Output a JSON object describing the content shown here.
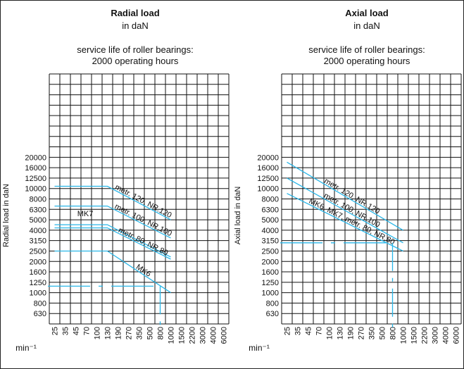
{
  "chart_data": [
    {
      "type": "line",
      "title": "Radial load",
      "subtitle_unit": "in daN",
      "subtitle_life": "service life of roller bearings:",
      "subtitle_hours": "2000 operating hours",
      "ylabel": "Radial load in daN",
      "xlabel_unit": "min⁻¹",
      "y_ticks": [
        "20000",
        "16000",
        "12500",
        "10000",
        "8000",
        "6300",
        "5000",
        "4000",
        "3150",
        "2500",
        "2000",
        "1600",
        "1250",
        "1000",
        "800",
        "630"
      ],
      "x_ticks": [
        "25",
        "35",
        "45",
        "70",
        "100",
        "130",
        "190",
        "270",
        "350",
        "500",
        "800",
        "1000",
        "1500",
        "2200",
        "3000",
        "4000",
        "6000"
      ],
      "series": [
        {
          "name": "metr. 120, NR.120",
          "points": [
            [
              "25",
              "10500"
            ],
            [
              "130",
              "10500"
            ],
            [
              "1000",
              "5000"
            ]
          ]
        },
        {
          "name": "metr. 100, NR.100",
          "points": [
            [
              "25",
              "6800"
            ],
            [
              "130",
              "6800"
            ],
            [
              "1000",
              "3350"
            ]
          ]
        },
        {
          "name": "MK7",
          "points": [
            [
              "25",
              "4500"
            ],
            [
              "130",
              "4500"
            ],
            [
              "1000",
              "2200"
            ]
          ]
        },
        {
          "name": "metr. 80, NR.80",
          "points": [
            [
              "25",
              "4200"
            ],
            [
              "130",
              "4200"
            ],
            [
              "1000",
              "2100"
            ]
          ]
        },
        {
          "name": "MK6",
          "points": [
            [
              "25",
              "2500"
            ],
            [
              "130",
              "2500"
            ],
            [
              "1000",
              "1000"
            ]
          ]
        }
      ],
      "guide": {
        "speed": "800",
        "load": "1150"
      }
    },
    {
      "type": "line",
      "title": "Axial load",
      "subtitle_unit": "in daN",
      "subtitle_life": "service life of roller bearings:",
      "subtitle_hours": "2000 operating hours",
      "ylabel": "Axial load in daN",
      "xlabel_unit": "min⁻¹",
      "y_ticks": [
        "20000",
        "16000",
        "12500",
        "10000",
        "8000",
        "6300",
        "5000",
        "4000",
        "3150",
        "2500",
        "2000",
        "1600",
        "1250",
        "1000",
        "800",
        "630"
      ],
      "x_ticks": [
        "25",
        "35",
        "45",
        "70",
        "100",
        "130",
        "190",
        "270",
        "350",
        "500",
        "800",
        "1000",
        "1500",
        "2200",
        "3000",
        "4000",
        "6000"
      ],
      "series": [
        {
          "name": "metr. 120, NR.120",
          "points": [
            [
              "25",
              "18000"
            ],
            [
              "1000",
              "4000"
            ]
          ]
        },
        {
          "name": "metr. 100, NR.100",
          "points": [
            [
              "25",
              "12500"
            ],
            [
              "1000",
              "3000"
            ]
          ]
        },
        {
          "name": "MK6, MK7, metr. 80, NR.80",
          "points": [
            [
              "25",
              "9000"
            ],
            [
              "1000",
              "2500"
            ]
          ]
        }
      ],
      "guide": {
        "speed": "800",
        "load": "3000"
      }
    }
  ],
  "colors": {
    "grid": "#111111",
    "series": "#29b6e8"
  }
}
